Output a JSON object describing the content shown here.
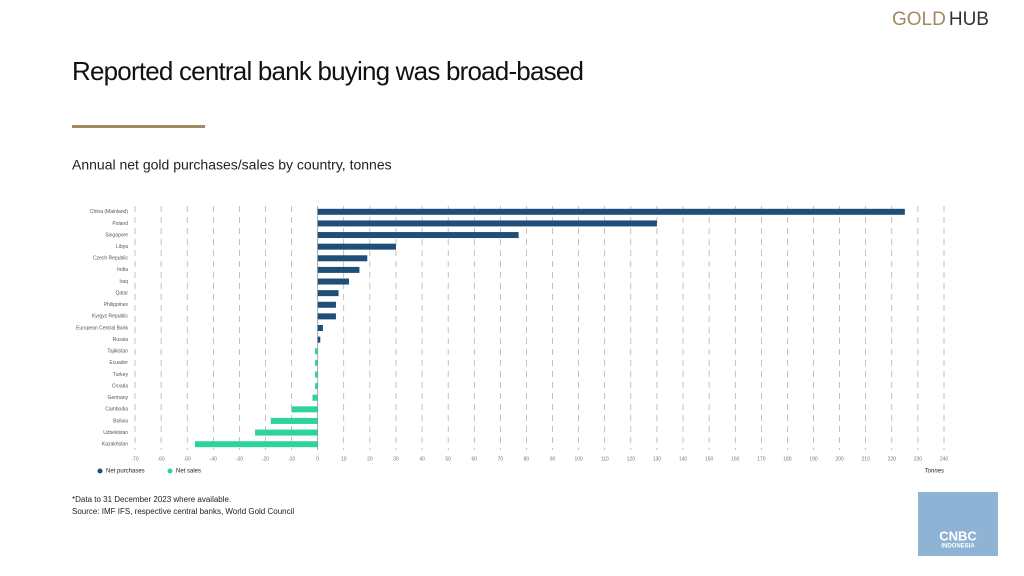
{
  "brand": {
    "part1": "GOLD",
    "part2": "HUB"
  },
  "logo": {
    "line1": "CNBC",
    "line2": "INDONESIA"
  },
  "footnote": "*Data to 31 December 2023 where available.",
  "source": "Source: IMF IFS, respective central banks, World Gold Council",
  "chart_data": {
    "type": "hbar",
    "title": "Reported central bank buying was broad-based",
    "subtitle": "Annual net gold purchases/sales by country, tonnes",
    "x_label": "Tonnes",
    "categories": [
      "China (Mainland)",
      "Poland",
      "Singapore",
      "Libya",
      "Czech Republic",
      "India",
      "Iraq",
      "Qatar",
      "Philippines",
      "Kyrgyz Republic",
      "European Central Bank",
      "Russia",
      "Tajikistan",
      "Ecuador",
      "Turkey",
      "Croatia",
      "Germany",
      "Cambodia",
      "Bolivia",
      "Uzbekistan",
      "Kazakhstan"
    ],
    "series": [
      {
        "name": "Net purchases",
        "color": "#1f4e79",
        "values": [
          225,
          130,
          77,
          30,
          19,
          16,
          12,
          8,
          7,
          7,
          2,
          1,
          null,
          null,
          null,
          null,
          null,
          null,
          null,
          null,
          null
        ]
      },
      {
        "name": "Net sales",
        "color": "#2ed39c",
        "values": [
          null,
          null,
          null,
          null,
          null,
          null,
          null,
          null,
          null,
          null,
          null,
          null,
          -1,
          -1,
          -1,
          -1,
          -2,
          -10,
          -18,
          -24,
          -47
        ]
      }
    ],
    "xlim": [
      -70,
      240
    ],
    "xticks": [
      -70,
      -60,
      -50,
      -40,
      -30,
      -20,
      -10,
      0,
      10,
      20,
      30,
      40,
      50,
      60,
      70,
      80,
      90,
      100,
      110,
      120,
      130,
      140,
      150,
      160,
      170,
      180,
      190,
      200,
      210,
      220,
      230,
      240
    ],
    "grid": true
  }
}
